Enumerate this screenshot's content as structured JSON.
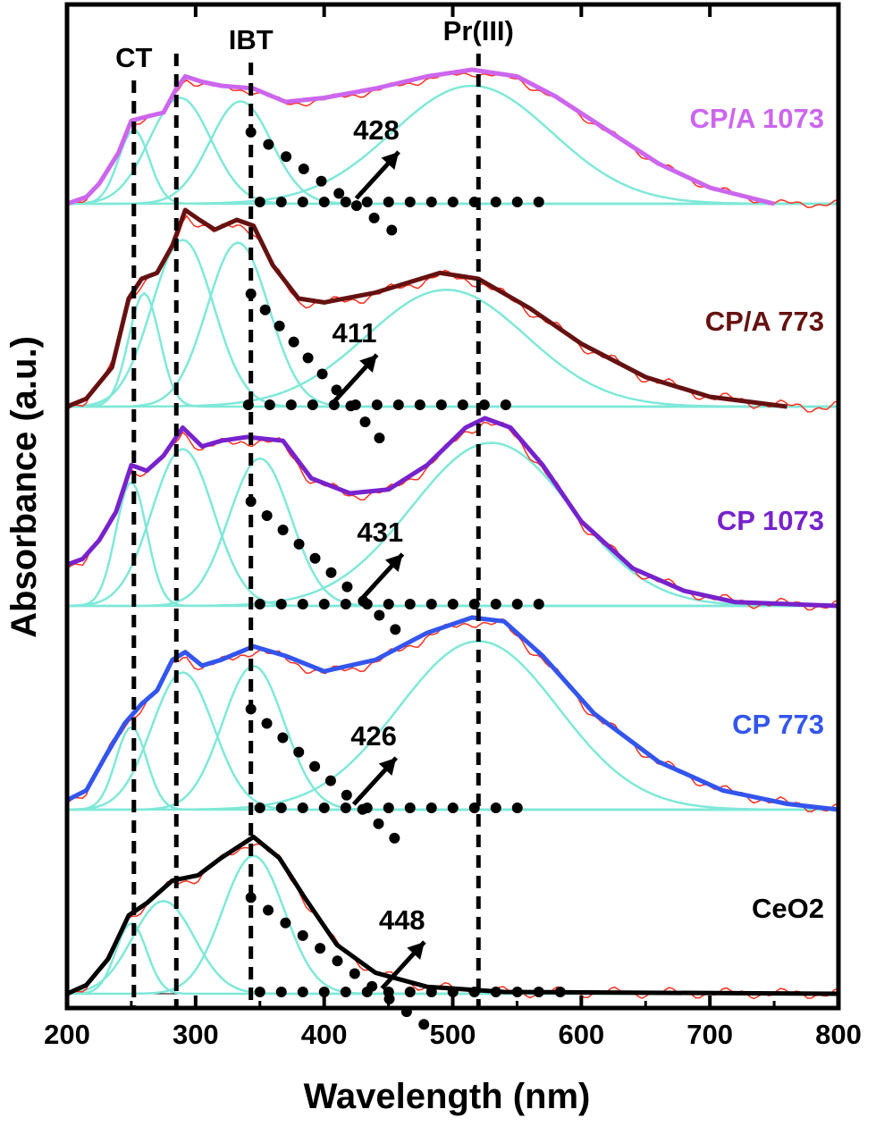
{
  "chart_data": {
    "type": "line",
    "xlabel": "Wavelength (nm)",
    "ylabel": "Absorbance (a.u.)",
    "xlim": [
      200,
      800
    ],
    "xticks": [
      200,
      300,
      400,
      500,
      600,
      700,
      800
    ],
    "y_tick_labels": false,
    "vertical_markers": [
      {
        "label": "CT",
        "x": 252
      },
      {
        "label": "",
        "x": 285
      },
      {
        "label": "IBT",
        "x": 343
      },
      {
        "label": "Pr(III)",
        "x": 520
      }
    ],
    "panels": [
      {
        "sample": "CP/A 1073",
        "color": "#cc66ee",
        "bandgap_label": "428",
        "fit_peaks_nm": [
          252,
          288,
          335,
          515
        ],
        "envelope": [
          [
            200,
            0.0
          ],
          [
            215,
            0.05
          ],
          [
            225,
            0.15
          ],
          [
            240,
            0.38
          ],
          [
            250,
            0.62
          ],
          [
            262,
            0.65
          ],
          [
            275,
            0.68
          ],
          [
            285,
            0.86
          ],
          [
            292,
            0.95
          ],
          [
            305,
            0.91
          ],
          [
            320,
            0.88
          ],
          [
            345,
            0.86
          ],
          [
            370,
            0.76
          ],
          [
            400,
            0.79
          ],
          [
            440,
            0.86
          ],
          [
            480,
            0.95
          ],
          [
            515,
            1.0
          ],
          [
            550,
            0.95
          ],
          [
            580,
            0.8
          ],
          [
            620,
            0.55
          ],
          [
            660,
            0.3
          ],
          [
            700,
            0.12
          ],
          [
            750,
            0.0
          ]
        ]
      },
      {
        "sample": "CP/A 773",
        "color": "#661111",
        "bandgap_label": "411",
        "fit_peaks_nm": [
          260,
          290,
          333,
          495
        ],
        "envelope": [
          [
            200,
            0.0
          ],
          [
            215,
            0.04
          ],
          [
            235,
            0.2
          ],
          [
            248,
            0.55
          ],
          [
            258,
            0.65
          ],
          [
            270,
            0.68
          ],
          [
            282,
            0.82
          ],
          [
            292,
            1.0
          ],
          [
            303,
            0.95
          ],
          [
            315,
            0.9
          ],
          [
            332,
            0.95
          ],
          [
            345,
            0.92
          ],
          [
            360,
            0.72
          ],
          [
            380,
            0.55
          ],
          [
            400,
            0.53
          ],
          [
            440,
            0.58
          ],
          [
            490,
            0.68
          ],
          [
            520,
            0.65
          ],
          [
            560,
            0.5
          ],
          [
            600,
            0.32
          ],
          [
            650,
            0.15
          ],
          [
            700,
            0.05
          ],
          [
            760,
            0.0
          ]
        ]
      },
      {
        "sample": "CP 1073",
        "color": "#7722cc",
        "bandgap_label": "431",
        "fit_peaks_nm": [
          250,
          290,
          350,
          530
        ],
        "envelope": [
          [
            200,
            0.22
          ],
          [
            212,
            0.25
          ],
          [
            225,
            0.35
          ],
          [
            238,
            0.5
          ],
          [
            250,
            0.75
          ],
          [
            262,
            0.72
          ],
          [
            275,
            0.8
          ],
          [
            290,
            0.95
          ],
          [
            305,
            0.85
          ],
          [
            320,
            0.88
          ],
          [
            340,
            0.9
          ],
          [
            368,
            0.88
          ],
          [
            390,
            0.68
          ],
          [
            420,
            0.6
          ],
          [
            450,
            0.62
          ],
          [
            480,
            0.75
          ],
          [
            510,
            0.95
          ],
          [
            525,
            1.0
          ],
          [
            545,
            0.95
          ],
          [
            570,
            0.75
          ],
          [
            600,
            0.45
          ],
          [
            640,
            0.2
          ],
          [
            680,
            0.08
          ],
          [
            720,
            0.02
          ],
          [
            800,
            0.0
          ]
        ]
      },
      {
        "sample": "CP 773",
        "color": "#3355ee",
        "bandgap_label": "426",
        "fit_peaks_nm": [
          250,
          290,
          345,
          520
        ],
        "envelope": [
          [
            200,
            0.05
          ],
          [
            215,
            0.1
          ],
          [
            230,
            0.28
          ],
          [
            245,
            0.45
          ],
          [
            258,
            0.55
          ],
          [
            270,
            0.62
          ],
          [
            282,
            0.78
          ],
          [
            292,
            0.82
          ],
          [
            305,
            0.75
          ],
          [
            320,
            0.78
          ],
          [
            345,
            0.85
          ],
          [
            370,
            0.8
          ],
          [
            400,
            0.72
          ],
          [
            440,
            0.78
          ],
          [
            480,
            0.92
          ],
          [
            515,
            1.0
          ],
          [
            540,
            0.98
          ],
          [
            570,
            0.8
          ],
          [
            610,
            0.5
          ],
          [
            660,
            0.25
          ],
          [
            710,
            0.1
          ],
          [
            760,
            0.03
          ],
          [
            800,
            0.0
          ]
        ]
      },
      {
        "sample": "CeO2",
        "color": "#000000",
        "bandgap_label": "448",
        "fit_peaks_nm": [
          250,
          275,
          345
        ],
        "envelope": [
          [
            200,
            0.0
          ],
          [
            215,
            0.05
          ],
          [
            232,
            0.2
          ],
          [
            248,
            0.45
          ],
          [
            262,
            0.52
          ],
          [
            282,
            0.65
          ],
          [
            302,
            0.68
          ],
          [
            320,
            0.78
          ],
          [
            345,
            0.9
          ],
          [
            365,
            0.78
          ],
          [
            385,
            0.55
          ],
          [
            410,
            0.28
          ],
          [
            440,
            0.12
          ],
          [
            480,
            0.04
          ],
          [
            540,
            0.01
          ],
          [
            800,
            0.0
          ]
        ]
      }
    ]
  },
  "colors": {
    "fit": "#7fe8d8",
    "raw": "#ff3020",
    "axis": "#000000"
  }
}
